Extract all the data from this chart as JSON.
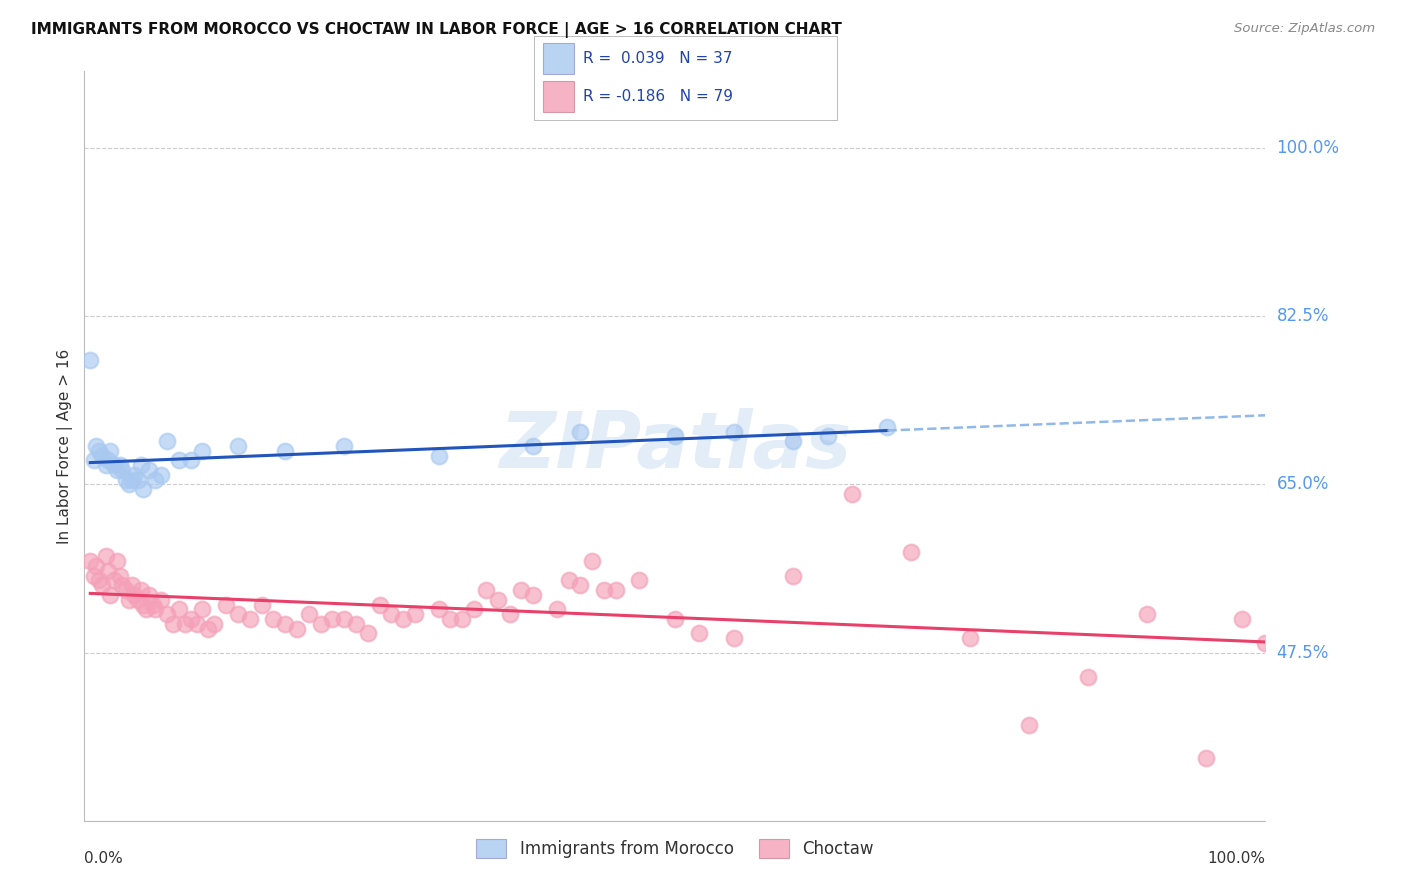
{
  "title": "IMMIGRANTS FROM MOROCCO VS CHOCTAW IN LABOR FORCE | AGE > 16 CORRELATION CHART",
  "source": "Source: ZipAtlas.com",
  "ylabel": "In Labor Force | Age > 16",
  "watermark": "ZIPatlas",
  "y_ticks": [
    47.5,
    65.0,
    82.5,
    100.0
  ],
  "x_range": [
    0.0,
    100.0
  ],
  "y_range": [
    30.0,
    108.0
  ],
  "legend_blue_r": "0.039",
  "legend_blue_n": "37",
  "legend_pink_r": "-0.186",
  "legend_pink_n": "79",
  "blue_scatter_color": "#A8C8F0",
  "pink_scatter_color": "#F4A0B8",
  "blue_line_color": "#2255BB",
  "pink_line_color": "#E8406A",
  "blue_dashed_color": "#90B8E8",
  "grid_color": "#CCCCCC",
  "tick_label_color": "#5599EE",
  "axis_label_color": "#333333",
  "title_color": "#111111",
  "source_color": "#888888",
  "morocco_x": [
    0.5,
    0.8,
    1.0,
    1.2,
    1.5,
    1.8,
    2.0,
    2.2,
    2.5,
    2.8,
    3.0,
    3.2,
    3.5,
    3.8,
    4.0,
    4.2,
    4.5,
    4.8,
    5.0,
    5.5,
    6.0,
    6.5,
    7.0,
    8.0,
    9.0,
    10.0,
    13.0,
    17.0,
    22.0,
    30.0,
    38.0,
    42.0,
    50.0,
    55.0,
    60.0,
    63.0,
    68.0
  ],
  "morocco_y": [
    78.0,
    67.5,
    69.0,
    68.5,
    68.0,
    67.0,
    67.5,
    68.5,
    67.0,
    66.5,
    67.0,
    66.5,
    65.5,
    65.0,
    65.5,
    66.0,
    65.5,
    67.0,
    64.5,
    66.5,
    65.5,
    66.0,
    69.5,
    67.5,
    67.5,
    68.5,
    69.0,
    68.5,
    69.0,
    68.0,
    69.0,
    70.5,
    70.0,
    70.5,
    69.5,
    70.0,
    71.0
  ],
  "choctaw_x": [
    0.5,
    0.8,
    1.0,
    1.2,
    1.5,
    1.8,
    2.0,
    2.2,
    2.5,
    2.8,
    3.0,
    3.2,
    3.5,
    3.8,
    4.0,
    4.2,
    4.5,
    4.8,
    5.0,
    5.2,
    5.5,
    5.8,
    6.0,
    6.5,
    7.0,
    7.5,
    8.0,
    8.5,
    9.0,
    9.5,
    10.0,
    10.5,
    11.0,
    12.0,
    13.0,
    14.0,
    15.0,
    16.0,
    17.0,
    18.0,
    19.0,
    20.0,
    21.0,
    22.0,
    23.0,
    24.0,
    25.0,
    26.0,
    27.0,
    28.0,
    30.0,
    31.0,
    32.0,
    33.0,
    34.0,
    35.0,
    36.0,
    37.0,
    38.0,
    40.0,
    41.0,
    42.0,
    43.0,
    44.0,
    45.0,
    47.0,
    50.0,
    52.0,
    55.0,
    60.0,
    65.0,
    70.0,
    75.0,
    80.0,
    85.0,
    90.0,
    95.0,
    98.0,
    100.0
  ],
  "choctaw_y": [
    57.0,
    55.5,
    56.5,
    55.0,
    54.5,
    57.5,
    56.0,
    53.5,
    55.0,
    57.0,
    55.5,
    54.5,
    54.0,
    53.0,
    54.5,
    53.5,
    53.0,
    54.0,
    52.5,
    52.0,
    53.5,
    52.5,
    52.0,
    53.0,
    51.5,
    50.5,
    52.0,
    50.5,
    51.0,
    50.5,
    52.0,
    50.0,
    50.5,
    52.5,
    51.5,
    51.0,
    52.5,
    51.0,
    50.5,
    50.0,
    51.5,
    50.5,
    51.0,
    51.0,
    50.5,
    49.5,
    52.5,
    51.5,
    51.0,
    51.5,
    52.0,
    51.0,
    51.0,
    52.0,
    54.0,
    53.0,
    51.5,
    54.0,
    53.5,
    52.0,
    55.0,
    54.5,
    57.0,
    54.0,
    54.0,
    55.0,
    51.0,
    49.5,
    49.0,
    55.5,
    64.0,
    58.0,
    49.0,
    40.0,
    45.0,
    51.5,
    36.5,
    51.0,
    48.5
  ]
}
